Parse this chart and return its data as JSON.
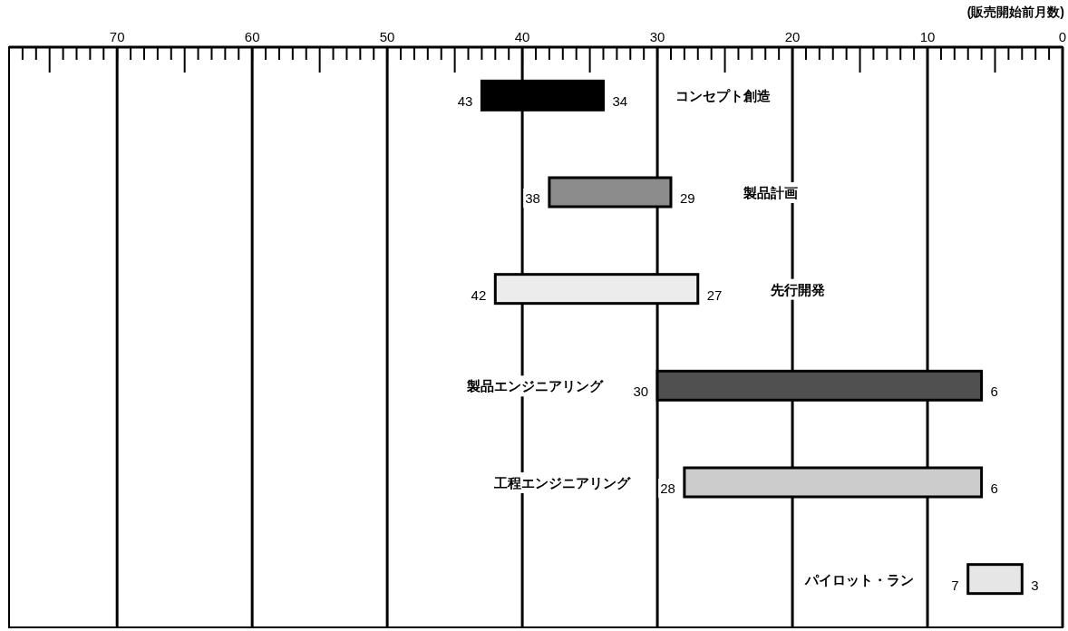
{
  "chart_data": {
    "type": "bar",
    "orientation": "horizontal",
    "xlabel": "(販売開始前月数)",
    "categories": [
      "コンセプト創造",
      "製品計画",
      "先行開発",
      "製品エンジニアリング",
      "工程エンジニアリング",
      "パイロット・ラン"
    ],
    "base": [
      34,
      29,
      27,
      6,
      6,
      3
    ],
    "values": [
      9,
      9,
      15,
      24,
      22,
      4
    ],
    "colors": [
      "#000000",
      "#8c8c8c",
      "#ececec",
      "#505050",
      "#cccccc",
      "#e6e6e6"
    ],
    "xlim": [
      78,
      0
    ],
    "xticks": [
      70,
      60,
      50,
      40,
      30,
      20,
      10,
      0
    ],
    "grid": "x",
    "annotations": [
      {
        "text": "43",
        "x": 43,
        "y": "コンセプト創造"
      },
      {
        "text": "34",
        "x": 34,
        "y": "コンセプト創造"
      },
      {
        "text": "38",
        "x": 38,
        "y": "製品計画"
      },
      {
        "text": "29",
        "x": 29,
        "y": "製品計画"
      },
      {
        "text": "42",
        "x": 42,
        "y": "先行開発"
      },
      {
        "text": "27",
        "x": 27,
        "y": "先行開発"
      },
      {
        "text": "30",
        "x": 30,
        "y": "製品エンジニアリング"
      },
      {
        "text": "6",
        "x": 6,
        "y": "製品エンジニアリング"
      },
      {
        "text": "28",
        "x": 28,
        "y": "工程エンジニアリング"
      },
      {
        "text": "6",
        "x": 6,
        "y": "工程エンジニアリング"
      },
      {
        "text": "7",
        "x": 7,
        "y": "パイロット・ラン"
      },
      {
        "text": "3",
        "x": 3,
        "y": "パイロット・ラン"
      }
    ]
  }
}
